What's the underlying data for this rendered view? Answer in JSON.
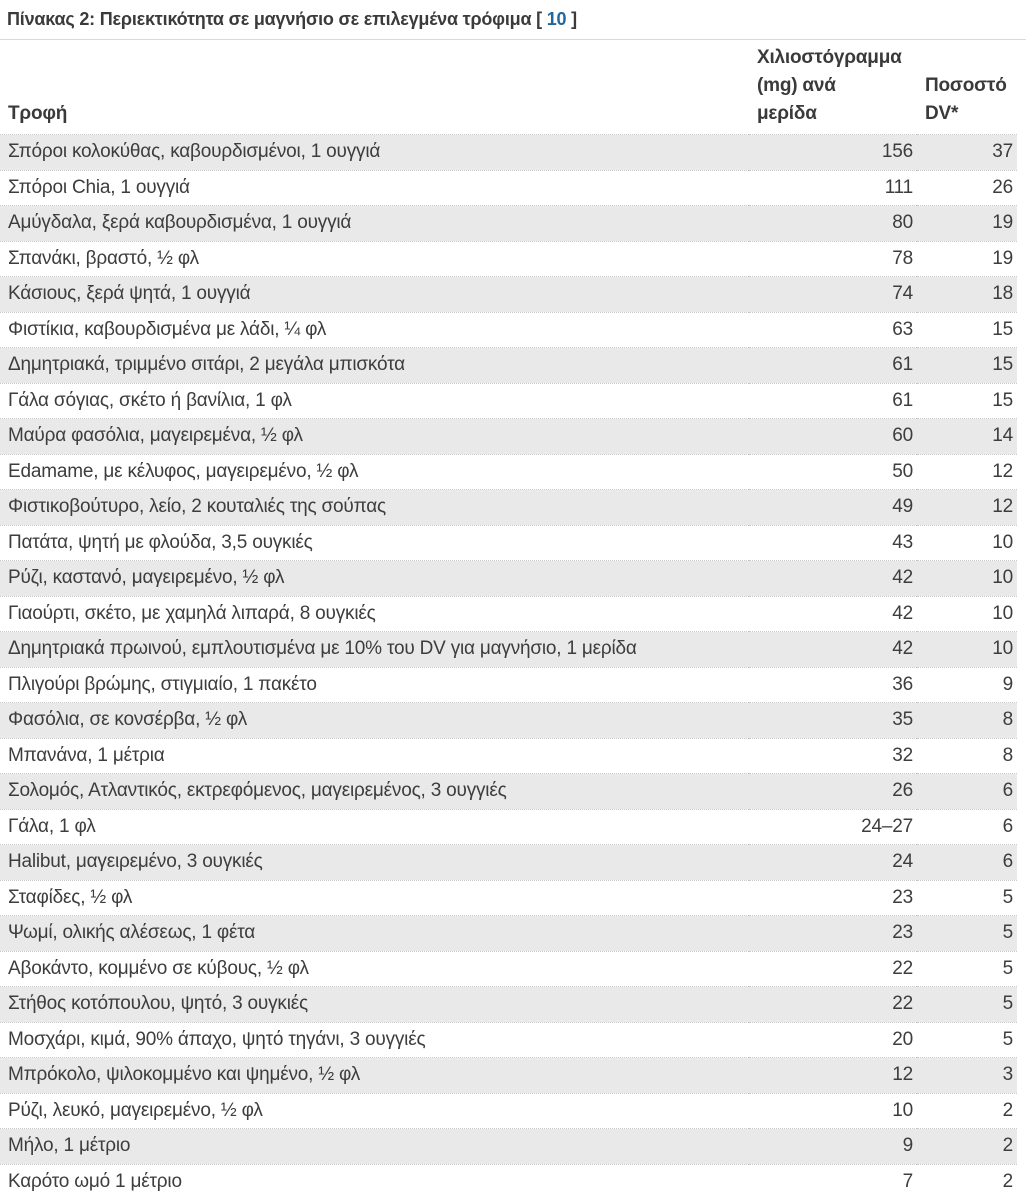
{
  "caption": {
    "text": "Πίνακας 2: Περιεκτικότητα σε μαγνήσιο σε επιλεγμένα τρόφιμα",
    "bracket_open": " [ ",
    "ref": "10",
    "bracket_close": " ]"
  },
  "colors": {
    "link_blue": "#20679f",
    "alt_row_gray": "#e9e9e9",
    "text_dark": "#3d3d3d"
  },
  "table": {
    "headers": [
      "Τροφή",
      "Χιλιοστόγραμμα\n(mg) ανά\nμερίδα",
      "Ποσοστό\nDV*"
    ],
    "rows": [
      {
        "food": "Σπόροι κολοκύθας, καβουρδισμένοι, 1 ουγγιά",
        "mg": "156",
        "dv": "37"
      },
      {
        "food": "Σπόροι Chia, 1 ουγγιά",
        "mg": "111",
        "dv": "26"
      },
      {
        "food": "Αμύγδαλα, ξερά καβουρδισμένα, 1 ουγγιά",
        "mg": "80",
        "dv": "19"
      },
      {
        "food": "Σπανάκι, βραστό, ½ φλ",
        "mg": "78",
        "dv": "19"
      },
      {
        "food": "Κάσιους, ξερά ψητά, 1 ουγγιά",
        "mg": "74",
        "dv": "18"
      },
      {
        "food": "Φιστίκια, καβουρδισμένα με λάδι, ¼ φλ",
        "mg": "63",
        "dv": "15"
      },
      {
        "food": "Δημητριακά, τριμμένο σιτάρι, 2 μεγάλα μπισκότα",
        "mg": "61",
        "dv": "15"
      },
      {
        "food": "Γάλα σόγιας, σκέτο ή βανίλια, 1 φλ",
        "mg": "61",
        "dv": "15"
      },
      {
        "food": "Μαύρα φασόλια, μαγειρεμένα, ½ φλ",
        "mg": "60",
        "dv": "14"
      },
      {
        "food": "Edamame, με κέλυφος, μαγειρεμένο, ½ φλ",
        "mg": "50",
        "dv": "12"
      },
      {
        "food": "Φιστικοβούτυρο, λείο, 2 κουταλιές της σούπας",
        "mg": "49",
        "dv": "12"
      },
      {
        "food": "Πατάτα, ψητή με φλούδα, 3,5 ουγκιές",
        "mg": "43",
        "dv": "10"
      },
      {
        "food": "Ρύζι, καστανό, μαγειρεμένο, ½ φλ",
        "mg": "42",
        "dv": "10"
      },
      {
        "food": "Γιαούρτι, σκέτο, με χαμηλά λιπαρά, 8 ουγκιές",
        "mg": "42",
        "dv": "10"
      },
      {
        "food": "Δημητριακά πρωινού, εμπλουτισμένα με 10% του DV για μαγνήσιο, 1 μερίδα",
        "mg": "42",
        "dv": "10"
      },
      {
        "food": "Πλιγούρι βρώμης, στιγμιαίο, 1 πακέτο",
        "mg": "36",
        "dv": "9"
      },
      {
        "food": "Φασόλια, σε κονσέρβα, ½ φλ",
        "mg": "35",
        "dv": "8"
      },
      {
        "food": "Μπανάνα, 1 μέτρια",
        "mg": "32",
        "dv": "8"
      },
      {
        "food": "Σολομός, Ατλαντικός, εκτρεφόμενος, μαγειρεμένος, 3 ουγγιές",
        "mg": "26",
        "dv": "6"
      },
      {
        "food": "Γάλα, 1 φλ",
        "mg": "24–27",
        "dv": "6"
      },
      {
        "food": "Halibut, μαγειρεμένο, 3 ουγκιές",
        "mg": "24",
        "dv": "6"
      },
      {
        "food": "Σταφίδες, ½ φλ",
        "mg": "23",
        "dv": "5"
      },
      {
        "food": "Ψωμί, ολικής αλέσεως, 1 φέτα",
        "mg": "23",
        "dv": "5"
      },
      {
        "food": "Αβοκάντο, κομμένο σε κύβους, ½ φλ",
        "mg": "22",
        "dv": "5"
      },
      {
        "food": "Στήθος κοτόπουλου, ψητό, 3 ουγκιές",
        "mg": "22",
        "dv": "5"
      },
      {
        "food": "Μοσχάρι, κιμά, 90% άπαχο, ψητό τηγάνι, 3 ουγγιές",
        "mg": "20",
        "dv": "5"
      },
      {
        "food": "Μπρόκολο, ψιλοκομμένο και ψημένο, ½ φλ",
        "mg": "12",
        "dv": "3"
      },
      {
        "food": "Ρύζι, λευκό, μαγειρεμένο, ½ φλ",
        "mg": "10",
        "dv": "2"
      },
      {
        "food": "Μήλο, 1 μέτριο",
        "mg": "9",
        "dv": "2"
      },
      {
        "food": "Καρότο ωμό 1 μέτριο",
        "mg": "7",
        "dv": "2"
      }
    ]
  }
}
